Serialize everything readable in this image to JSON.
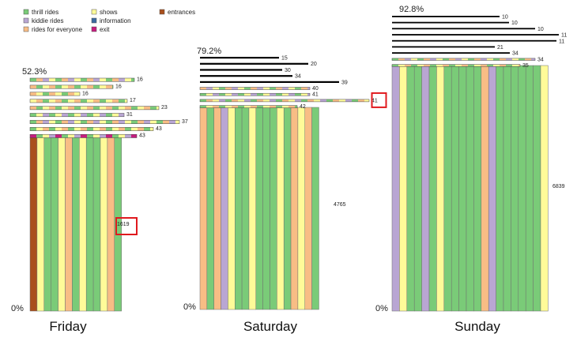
{
  "chart_data": {
    "type": "bar",
    "colors": {
      "thrill rides": "#7acb78",
      "kiddie rides": "#b9a6d3",
      "rides for everyone": "#f8bd85",
      "shows": "#fffb99",
      "information": "#3b6aa0",
      "exit": "#c61d7f",
      "entrances": "#a94f1c",
      "group line": "#000000",
      "highlight": "#e0191e"
    },
    "legend": [
      {
        "label": "thrill rides",
        "color": "#7acb78"
      },
      {
        "label": "kiddie rides",
        "color": "#b9a6d3"
      },
      {
        "label": "rides for everyone",
        "color": "#f8bd85"
      },
      {
        "label": "shows",
        "color": "#fffb99"
      },
      {
        "label": "information",
        "color": "#3b6aa0"
      },
      {
        "label": "exit",
        "color": "#c61d7f"
      },
      {
        "label": "entrances",
        "color": "#a94f1c"
      }
    ],
    "panels": [
      {
        "day": "Friday",
        "top_pct": "52.3%",
        "bottom_pct": "0%",
        "main_group": {
          "count": "1619",
          "highlight": true,
          "stripes": [
            "entrances",
            "shows",
            "thrill rides",
            "thrill rides",
            "shows",
            "rides for everyone",
            "thrill rides",
            "shows",
            "thrill rides",
            "thrill rides",
            "shows",
            "rides for everyone",
            "thrill rides"
          ]
        },
        "small_groups": [
          {
            "count": "16",
            "pattern": [
              "thrill rides",
              "rides for everyone",
              "kiddie rides",
              "shows"
            ]
          },
          {
            "count": "16",
            "pattern": [
              "rides for everyone",
              "thrill rides",
              "shows"
            ]
          },
          {
            "count": "16",
            "pattern": [
              "rides for everyone",
              "shows",
              "thrill rides"
            ]
          },
          {
            "count": "17",
            "pattern": [
              "shows",
              "rides for everyone",
              "thrill rides"
            ]
          },
          {
            "count": "23",
            "pattern": [
              "rides for everyone",
              "thrill rides",
              "shows"
            ]
          },
          {
            "count": "31",
            "pattern": [
              "thrill rides",
              "shows",
              "kiddie rides"
            ]
          },
          {
            "count": "37",
            "pattern": [
              "thrill rides",
              "rides for everyone",
              "kiddie rides",
              "shows"
            ]
          },
          {
            "count": "43",
            "pattern": [
              "thrill rides",
              "shows",
              "rides for everyone"
            ]
          },
          {
            "count": "43",
            "pattern": [
              "exit",
              "thrill rides",
              "shows",
              "kiddie rides"
            ]
          }
        ]
      },
      {
        "day": "Saturday",
        "top_pct": "79.2%",
        "bottom_pct": "0%",
        "main_group": {
          "count": "4765",
          "highlight": false,
          "stripes": [
            "rides for everyone",
            "thrill rides",
            "rides for everyone",
            "kiddie rides",
            "shows",
            "thrill rides",
            "thrill rides",
            "shows",
            "thrill rides",
            "thrill rides",
            "thrill rides",
            "shows",
            "thrill rides",
            "rides for everyone",
            "shows",
            "rides for everyone",
            "thrill rides"
          ]
        },
        "small_groups": [
          {
            "count": "15",
            "highlight": false,
            "pattern": [
              "group line"
            ]
          },
          {
            "count": "20",
            "highlight": false,
            "pattern": [
              "group line"
            ]
          },
          {
            "count": "30",
            "highlight": false,
            "pattern": [
              "group line"
            ]
          },
          {
            "count": "34",
            "highlight": false,
            "pattern": [
              "group line"
            ]
          },
          {
            "count": "39",
            "highlight": false,
            "pattern": [
              "group line"
            ]
          },
          {
            "count": "40",
            "highlight": false,
            "pattern": [
              "rides for everyone",
              "kiddie rides",
              "shows",
              "thrill rides"
            ]
          },
          {
            "count": "41",
            "highlight": false,
            "pattern": [
              "thrill rides",
              "shows",
              "kiddie rides"
            ]
          },
          {
            "count": "41",
            "highlight": true,
            "pattern": [
              "thrill rides",
              "rides for everyone",
              "shows",
              "kiddie rides"
            ]
          },
          {
            "count": "42",
            "highlight": false,
            "pattern": [
              "thrill rides",
              "shows",
              "rides for everyone"
            ]
          }
        ]
      },
      {
        "day": "Sunday",
        "top_pct": "92.8%",
        "bottom_pct": "0%",
        "main_group": {
          "count": "6839",
          "highlight": false,
          "stripes": [
            "kiddie rides",
            "shows",
            "thrill rides",
            "thrill rides",
            "kiddie rides",
            "thrill rides",
            "shows",
            "thrill rides",
            "thrill rides",
            "thrill rides",
            "thrill rides",
            "thrill rides",
            "rides for everyone",
            "kiddie rides",
            "thrill rides",
            "thrill rides",
            "thrill rides",
            "thrill rides",
            "thrill rides",
            "thrill rides",
            "shows"
          ]
        },
        "small_groups": [
          {
            "count": "10",
            "pattern": [
              "group line"
            ]
          },
          {
            "count": "10",
            "pattern": [
              "group line"
            ]
          },
          {
            "count": "10",
            "pattern": [
              "group line"
            ]
          },
          {
            "count": "11",
            "pattern": [
              "group line"
            ]
          },
          {
            "count": "11",
            "pattern": [
              "group line"
            ]
          },
          {
            "count": "21",
            "pattern": [
              "group line"
            ]
          },
          {
            "count": "34",
            "pattern": [
              "group line"
            ]
          },
          {
            "count": "34",
            "pattern": [
              "thrill rides",
              "rides for everyone",
              "kiddie rides",
              "shows"
            ]
          },
          {
            "count": "35",
            "pattern": [
              "thrill rides",
              "shows",
              "rides for everyone"
            ]
          }
        ]
      }
    ]
  }
}
